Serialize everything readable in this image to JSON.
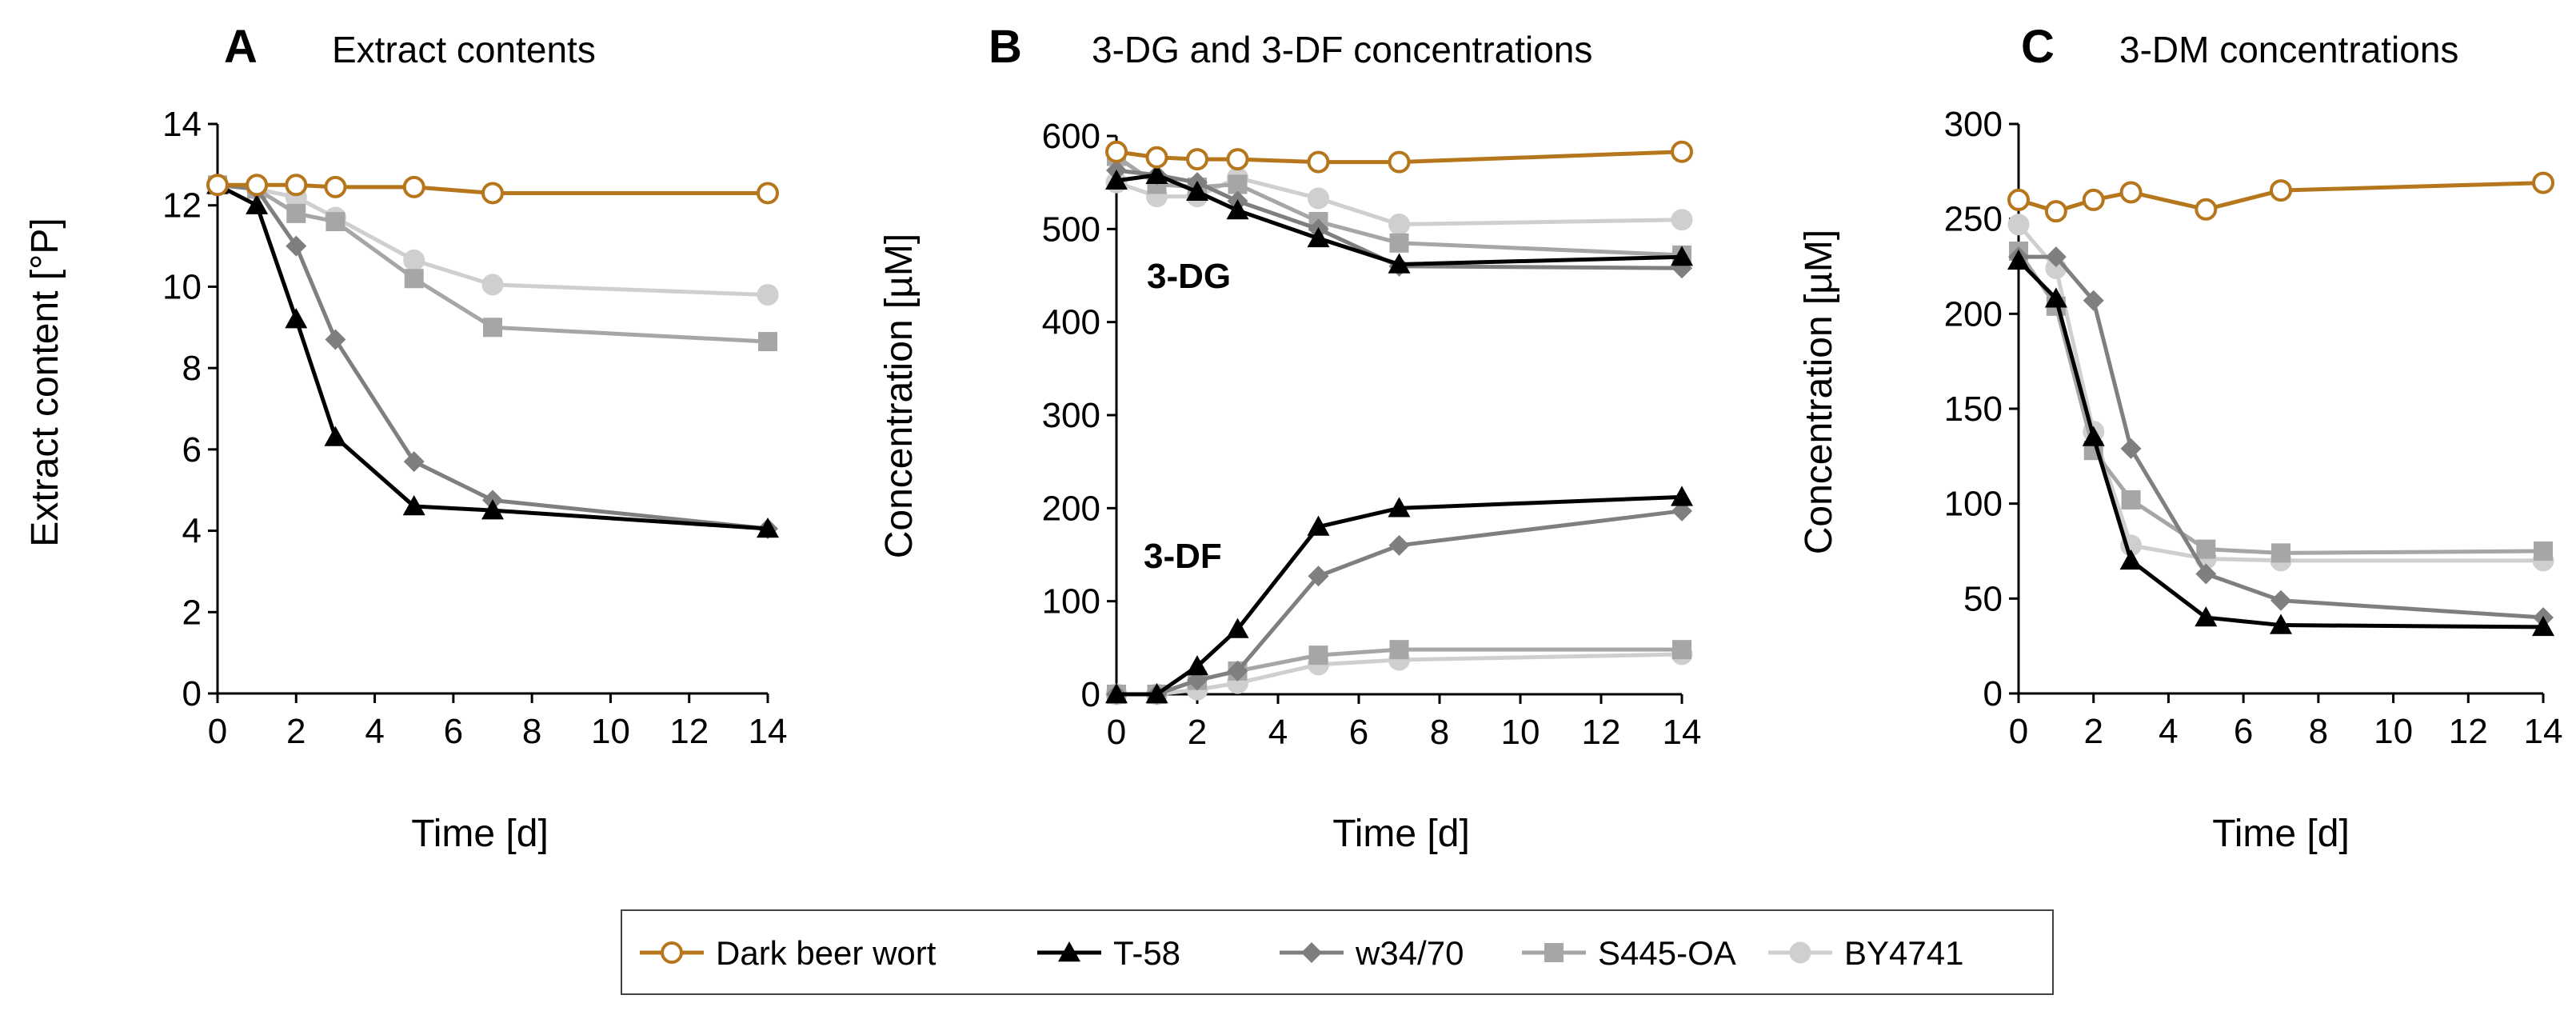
{
  "legend": {
    "items": [
      {
        "key": "dark",
        "label": "Dark beer wort"
      },
      {
        "key": "t58",
        "label": "T-58"
      },
      {
        "key": "w34",
        "label": "w34/70"
      },
      {
        "key": "s445",
        "label": "S445-OA"
      },
      {
        "key": "by",
        "label": "BY4741"
      }
    ]
  },
  "series_styles": {
    "dark": {
      "color": "#b5761c",
      "marker": "circle-open"
    },
    "t58": {
      "color": "#000000",
      "marker": "triangle"
    },
    "w34": {
      "color": "#7f7f7f",
      "marker": "diamond"
    },
    "s445": {
      "color": "#a6a6a6",
      "marker": "square"
    },
    "by": {
      "color": "#cfcfcf",
      "marker": "circle"
    }
  },
  "chart_data": [
    {
      "id": "A",
      "type": "line",
      "panel_letter": "A",
      "title": "Extract contents",
      "xlabel": "Time [d]",
      "ylabel": "Extract content [°P]",
      "xlim": [
        0,
        14
      ],
      "ylim": [
        0,
        14
      ],
      "xticks": [
        "0",
        "2",
        "4",
        "6",
        "8",
        "10",
        "12",
        "14"
      ],
      "yticks": [
        "0",
        "2",
        "4",
        "6",
        "8",
        "10",
        "12",
        "14"
      ],
      "x": [
        0,
        1,
        2,
        3,
        5,
        7,
        14
      ],
      "series": [
        {
          "key": "dark",
          "name": "Dark beer wort",
          "values": [
            12.5,
            12.5,
            12.5,
            12.45,
            12.45,
            12.3,
            12.3
          ]
        },
        {
          "key": "t58",
          "name": "T-58",
          "values": [
            12.5,
            12.0,
            9.2,
            6.3,
            4.6,
            4.5,
            4.05
          ]
        },
        {
          "key": "w34",
          "name": "w34/70",
          "values": [
            12.5,
            12.4,
            11.0,
            8.7,
            5.7,
            4.75,
            4.05
          ]
        },
        {
          "key": "s445",
          "name": "S445-OA",
          "values": [
            12.5,
            12.4,
            11.8,
            11.6,
            10.2,
            9.0,
            8.65
          ]
        },
        {
          "key": "by",
          "name": "BY4741",
          "values": [
            12.5,
            12.4,
            12.2,
            11.7,
            10.65,
            10.05,
            9.8
          ]
        }
      ]
    },
    {
      "id": "B",
      "type": "line",
      "panel_letter": "B",
      "title": "3-DG and 3-DF concentrations",
      "xlabel": "Time [d]",
      "ylabel": "Concentration [µM]",
      "xlim": [
        0,
        14
      ],
      "ylim": [
        0,
        600
      ],
      "xticks": [
        "0",
        "2",
        "4",
        "6",
        "8",
        "10",
        "12",
        "14"
      ],
      "yticks": [
        "0",
        "100",
        "200",
        "300",
        "400",
        "500",
        "600"
      ],
      "x": [
        0,
        1,
        2,
        3,
        5,
        7,
        14
      ],
      "annotations": [
        {
          "text": "3-DG",
          "x": 0.8,
          "y": 440
        },
        {
          "text": "3-DF",
          "x": 0.7,
          "y": 140
        }
      ],
      "series": [
        {
          "key": "dark",
          "name": "Dark beer wort",
          "values": [
            583,
            577,
            575,
            575,
            572,
            572,
            583
          ]
        },
        {
          "key": "t58",
          "name": "T-58",
          "values": [
            552,
            558,
            540,
            520,
            490,
            462,
            470
          ]
        },
        {
          "key": "w34",
          "name": "w34/70",
          "values": [
            563,
            558,
            550,
            530,
            500,
            460,
            458
          ]
        },
        {
          "key": "s445",
          "name": "S445-OA",
          "values": [
            578,
            548,
            545,
            548,
            508,
            485,
            472
          ]
        },
        {
          "key": "by",
          "name": "BY4741",
          "values": [
            550,
            535,
            535,
            555,
            533,
            505,
            510
          ]
        },
        {
          "key": "t58",
          "name": "T-58",
          "values": [
            0,
            0,
            30,
            70,
            180,
            200,
            212
          ]
        },
        {
          "key": "w34",
          "name": "w34/70",
          "values": [
            0,
            0,
            15,
            25,
            127,
            160,
            197
          ]
        },
        {
          "key": "s445",
          "name": "S445-OA",
          "values": [
            0,
            0,
            15,
            25,
            42,
            48,
            48
          ]
        },
        {
          "key": "by",
          "name": "BY4741",
          "values": [
            0,
            0,
            5,
            12,
            32,
            37,
            43
          ]
        }
      ]
    },
    {
      "id": "C",
      "type": "line",
      "panel_letter": "C",
      "title": "3-DM concentrations",
      "xlabel": "Time [d]",
      "ylabel": "Concentration [µM]",
      "xlim": [
        0,
        14
      ],
      "ylim": [
        0,
        300
      ],
      "xticks": [
        "0",
        "2",
        "4",
        "6",
        "8",
        "10",
        "12",
        "14"
      ],
      "yticks": [
        "0",
        "50",
        "100",
        "150",
        "200",
        "250",
        "300"
      ],
      "x": [
        0,
        1,
        2,
        3,
        5,
        7,
        14
      ],
      "series": [
        {
          "key": "dark",
          "name": "Dark beer wort",
          "values": [
            260,
            254,
            260,
            264,
            255,
            265,
            269
          ]
        },
        {
          "key": "t58",
          "name": "T-58",
          "values": [
            228,
            208,
            135,
            70,
            40,
            36,
            35
          ]
        },
        {
          "key": "w34",
          "name": "w34/70",
          "values": [
            230,
            230,
            207,
            129,
            63,
            49,
            40
          ]
        },
        {
          "key": "s445",
          "name": "S445-OA",
          "values": [
            233,
            204,
            128,
            102,
            76,
            74,
            75
          ]
        },
        {
          "key": "by",
          "name": "BY4741",
          "values": [
            247,
            224,
            138,
            78,
            71,
            70,
            70
          ]
        }
      ]
    }
  ]
}
